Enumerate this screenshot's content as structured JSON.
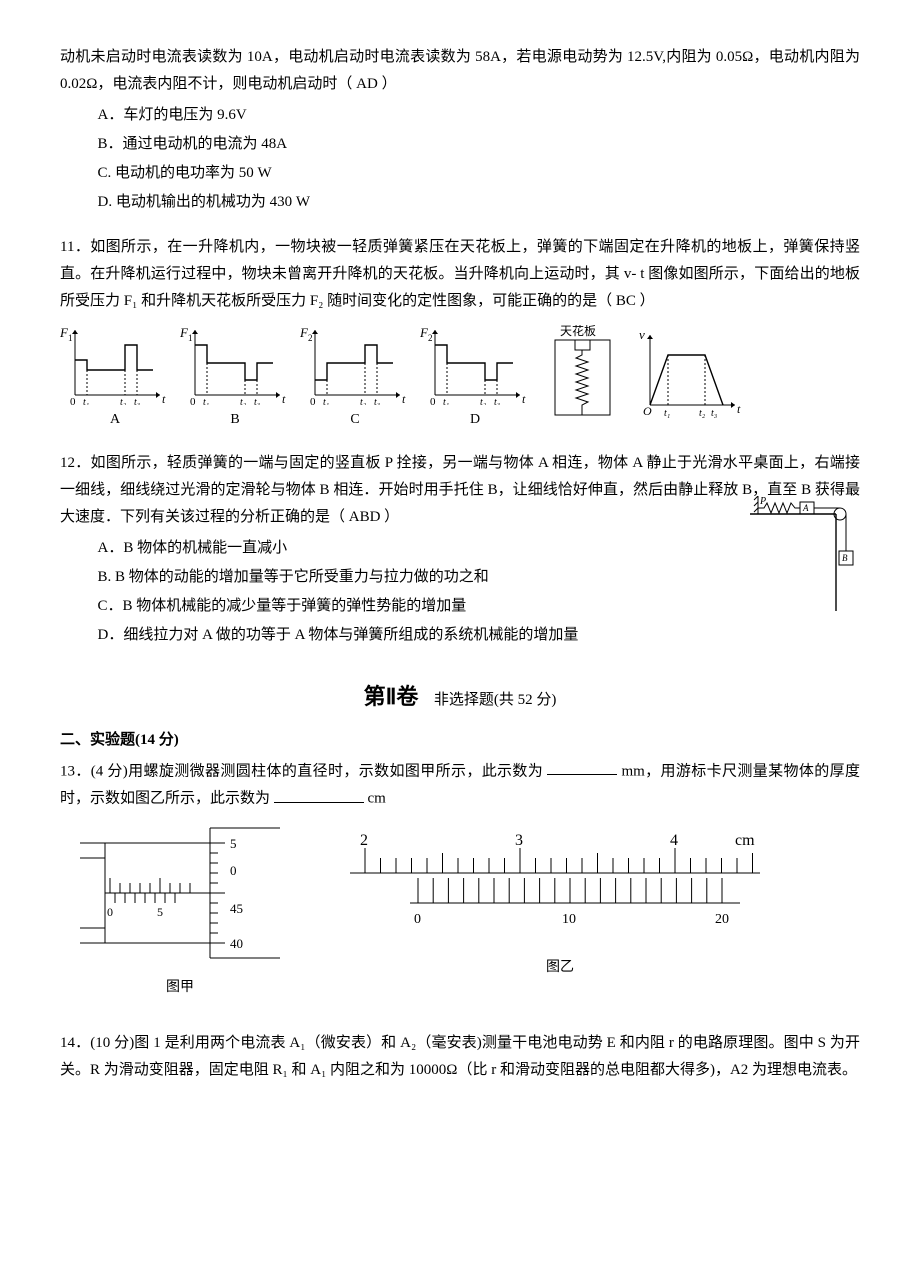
{
  "q10": {
    "stem_cont": "动机未启动时电流表读数为 10A，电动机启动时电流表读数为 58A，若电源电动势为 12.5V,内阻为 0.05Ω，电动机内阻为 0.02Ω，电流表内阻不计，则电动机启动时（ AD ）",
    "options": {
      "A": "A．车灯的电压为 9.6V",
      "B": "B．通过电动机的电流为 48A",
      "C": "C. 电动机的电功率为 50 W",
      "D": "D. 电动机输出的机械功为 430 W"
    }
  },
  "q11": {
    "stem": "11．如图所示，在一升降机内，一物块被一轻质弹簧紧压在天花板上，弹簧的下端固定在升降机的地板上，弹簧保持竖直。在升降机运行过程中，物块未曾离开升降机的天花板。当升降机向上运动时，其 v- t 图像如图所示，下面给出的地板所受压力 F₁ 和升降机天花板所受压力 F₂ 随时间变化的定性图象，可能正确的的是（   BC   ）",
    "labels": {
      "A": "A",
      "B": "B",
      "C": "C",
      "D": "D"
    },
    "axis": {
      "y1": "F₁",
      "y2": "F₂",
      "x": "t",
      "t1": "t₁",
      "t2": "t₂",
      "t3": "t₃",
      "tianhua": "天花板"
    },
    "charts": {
      "colors": {
        "line": "#000000",
        "bg": "#ffffff"
      },
      "line_width": 1.2,
      "A": {
        "y_label": "F1",
        "seg": [
          [
            0,
            35
          ],
          [
            12,
            35
          ],
          [
            12,
            25
          ],
          [
            50,
            25
          ],
          [
            50,
            50
          ],
          [
            62,
            50
          ],
          [
            62,
            25
          ],
          [
            78,
            25
          ]
        ]
      },
      "B": {
        "y_label": "F1",
        "seg": [
          [
            0,
            50
          ],
          [
            12,
            50
          ],
          [
            12,
            32
          ],
          [
            50,
            32
          ],
          [
            50,
            15
          ],
          [
            62,
            15
          ],
          [
            62,
            32
          ],
          [
            78,
            32
          ]
        ]
      },
      "C": {
        "y_label": "F2",
        "seg": [
          [
            0,
            15
          ],
          [
            12,
            15
          ],
          [
            12,
            32
          ],
          [
            50,
            32
          ],
          [
            50,
            50
          ],
          [
            62,
            50
          ],
          [
            62,
            32
          ],
          [
            78,
            32
          ]
        ]
      },
      "D": {
        "y_label": "F2",
        "seg": [
          [
            0,
            50
          ],
          [
            12,
            50
          ],
          [
            12,
            32
          ],
          [
            50,
            32
          ],
          [
            50,
            15
          ],
          [
            62,
            15
          ],
          [
            62,
            32
          ],
          [
            78,
            32
          ]
        ]
      }
    }
  },
  "q12": {
    "stem": "12．如图所示，轻质弹簧的一端与固定的竖直板 P 拴接，另一端与物体 A 相连，物体 A 静止于光滑水平桌面上，右端接一细线，细线绕过光滑的定滑轮与物体 B 相连．开始时用手托住 B，让细线恰好伸直，然后由静止释放 B，直至 B 获得最大速度．下列有关该过程的分析正确的是（ ABD  ）",
    "options": {
      "A": "A．B 物体的机械能一直减小",
      "B": "B. B 物体的动能的增加量等于它所受重力与拉力做的功之和",
      "C": "C．B 物体机械能的减少量等于弹簧的弹性势能的增加量",
      "D": "D．细线拉力对 A 做的功等于 A 物体与弹簧所组成的系统机械能的增加量"
    },
    "fig_labels": {
      "P": "P",
      "A": "A",
      "B": "B"
    }
  },
  "section2": {
    "title": "第Ⅱ卷",
    "subtitle": "非选择题(共 52 分)"
  },
  "sec_exp": "二、实验题(14 分)",
  "q13": {
    "stem_a": "13．(4 分)用螺旋测微器测圆柱体的直径时，示数如图甲所示，此示数为",
    "stem_b": "mm，用游标卡尺测量某物体的厚度时，示数如图乙所示，此示数为",
    "stem_c": "cm",
    "caption1": "图甲",
    "caption2": "图乙",
    "micrometer": {
      "main_marks": [
        "0",
        "5"
      ],
      "thimble_marks": [
        "5",
        "0",
        "45",
        "40"
      ]
    },
    "vernier": {
      "main_scale": [
        "2",
        "3",
        "4",
        "cm"
      ],
      "vernier_scale": [
        "0",
        "10",
        "20"
      ]
    }
  },
  "q14": {
    "stem": "14．(10 分)图 1 是利用两个电流表 A₁（微安表）和 A₂（毫安表)测量干电池电动势 E 和内阻 r 的电路原理图。图中 S 为开关。R 为滑动变阻器，固定电阻 R₁ 和 A₁ 内阻之和为 10000Ω（比 r 和滑动变阻器的总电阻都大得多)，A2 为理想电流表。"
  }
}
